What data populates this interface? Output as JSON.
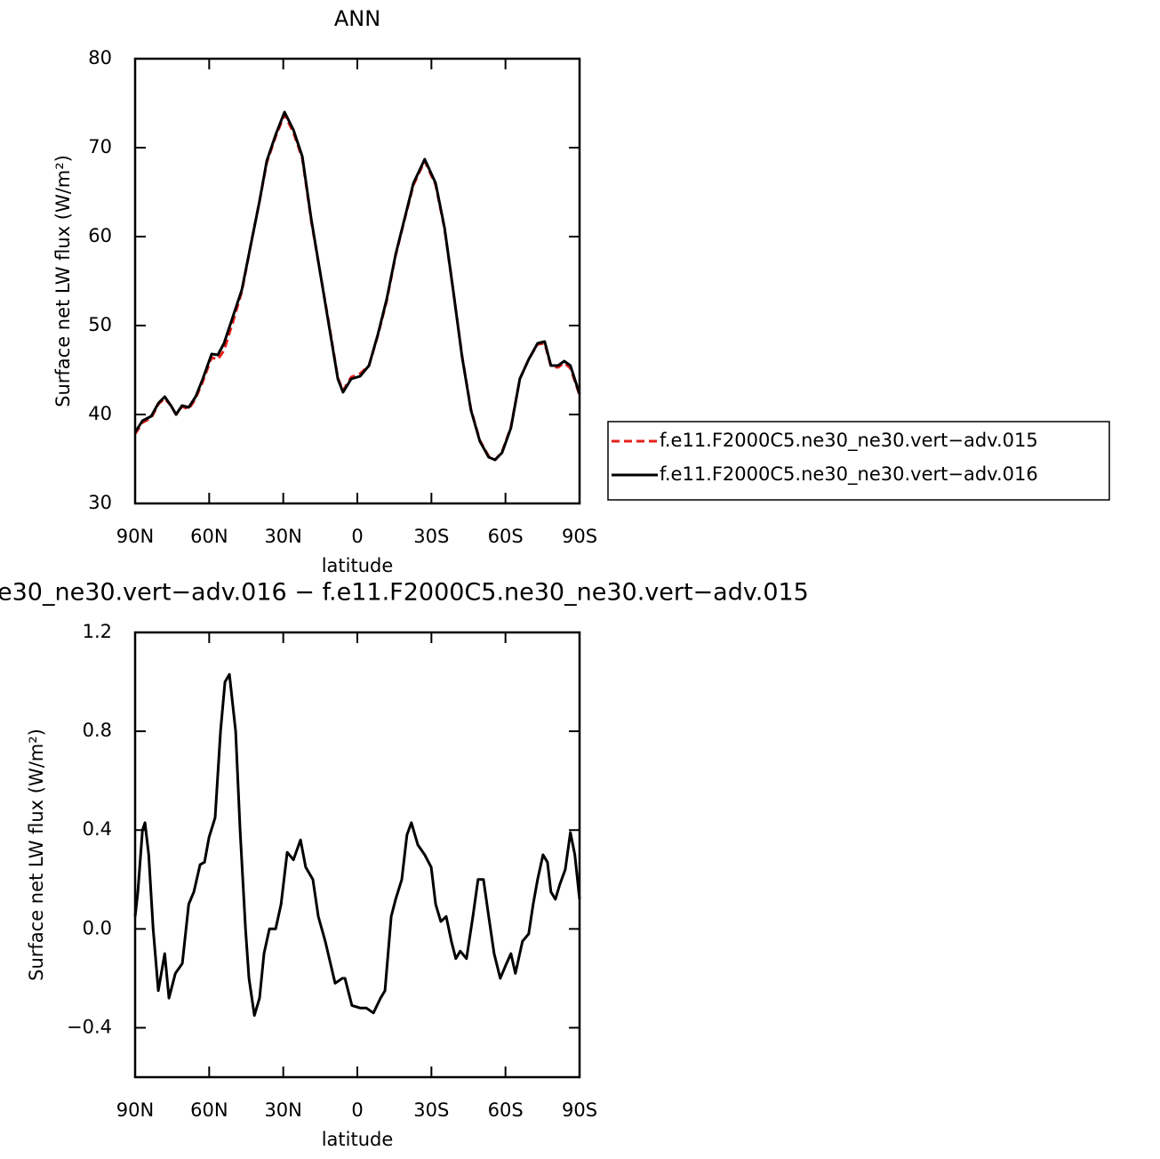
{
  "chart_data": [
    {
      "type": "line",
      "title": "ANN",
      "xlabel": "latitude",
      "ylabel": "Surface net LW flux (W/m²)",
      "xlim": [
        90,
        -90
      ],
      "ylim": [
        30,
        80
      ],
      "xticks": [
        {
          "value": 90,
          "label": "90N"
        },
        {
          "value": 60,
          "label": "60N"
        },
        {
          "value": 30,
          "label": "30N"
        },
        0,
        {
          "value": -30,
          "label": "30S"
        },
        {
          "value": -60,
          "label": "60S"
        },
        {
          "value": -90,
          "label": "90S"
        }
      ],
      "yticks": [
        30,
        40,
        50,
        60,
        70,
        80
      ],
      "legend": "right",
      "x": [
        90,
        87,
        83.5,
        80.5,
        78,
        75.5,
        73.4,
        71,
        68.3,
        65.5,
        62.6,
        59,
        56.5,
        54,
        50.4,
        46.8,
        43.2,
        39.6,
        36.7,
        33,
        29.5,
        25.9,
        22.3,
        18.7,
        15.1,
        11.5,
        7.9,
        5.8,
        2.5,
        -1.1,
        -4.7,
        -8.3,
        -11.9,
        -15.5,
        -19.1,
        -22.7,
        -27.3,
        -31.7,
        -35.3,
        -38.8,
        -42.4,
        -46,
        -49.6,
        -53.2,
        -55.8,
        -58.6,
        -62.2,
        -65.8,
        -69.4,
        -73,
        -75.9,
        -78.4,
        -81.3,
        -83.8,
        -86.3,
        -90
      ],
      "series": [
        {
          "name": "f.e11.F2000C5.ne30_ne30.vert−adv.015",
          "color": "#e8201a",
          "linestyle": "dashed",
          "values": [
            37.8,
            39.1,
            39.6,
            41.2,
            41.8,
            41,
            40,
            40.9,
            40.6,
            41.8,
            43.7,
            46.4,
            46.2,
            47.2,
            50.4,
            53.8,
            59,
            64,
            68.3,
            71.3,
            73.7,
            71.7,
            68.8,
            61.8,
            56,
            50.2,
            44.1,
            42.7,
            44.2,
            44.6,
            45.5,
            48.9,
            52.8,
            57.9,
            61.9,
            65.8,
            68.5,
            65.8,
            60.9,
            54,
            46.6,
            40.6,
            37.1,
            35.3,
            34.9,
            35.8,
            38.6,
            44,
            46.2,
            47.9,
            48,
            45.4,
            45.3,
            45.8,
            45.2,
            42.2
          ]
        },
        {
          "name": "f.e11.F2000C5.ne30_ne30.vert−adv.016",
          "color": "#000000",
          "linestyle": "solid",
          "values": [
            38,
            39.3,
            39.8,
            41.3,
            42,
            41,
            40,
            41,
            40.8,
            42,
            44,
            46.8,
            46.7,
            48,
            51,
            54,
            59,
            64,
            68.5,
            71.5,
            74,
            72,
            69,
            62,
            56,
            50,
            44,
            42.5,
            44,
            44.3,
            45.5,
            49,
            53,
            58,
            62,
            66,
            68.7,
            66,
            61,
            54,
            46.5,
            40.5,
            37,
            35.2,
            34.9,
            35.7,
            38.5,
            44,
            46.2,
            48,
            48.2,
            45.5,
            45.5,
            46,
            45.5,
            42.3
          ]
        }
      ]
    },
    {
      "type": "line",
      "title": "e30_ne30.vert−adv.016 − f.e11.F2000C5.ne30_ne30.vert−adv.015",
      "xlabel": "latitude",
      "ylabel": "Surface net LW flux (W/m²)",
      "xlim": [
        90,
        -90
      ],
      "ylim": [
        -0.6,
        1.2
      ],
      "xticks": [
        {
          "value": 90,
          "label": "90N"
        },
        {
          "value": 60,
          "label": "60N"
        },
        {
          "value": 30,
          "label": "30N"
        },
        0,
        {
          "value": -30,
          "label": "30S"
        },
        {
          "value": -60,
          "label": "60S"
        },
        {
          "value": -90,
          "label": "90S"
        }
      ],
      "yticks": [
        {
          "value": -0.4,
          "label": "−0.4"
        },
        {
          "value": 0,
          "label": "0.0"
        },
        0.4,
        0.8,
        1.2
      ],
      "x": [
        90,
        88.9,
        87,
        86,
        84.5,
        82.7,
        80.6,
        78,
        76.3,
        73.7,
        70.9,
        68.3,
        66.2,
        63.7,
        61.9,
        60.1,
        57.6,
        55.4,
        53.6,
        51.8,
        49.3,
        47.5,
        45.3,
        43.9,
        41.7,
        39.6,
        37.8,
        35.6,
        33.1,
        30.9,
        28.4,
        25.9,
        23,
        20.9,
        18,
        15.8,
        13,
        9,
        6.1,
        5,
        2.2,
        -1.1,
        -3.6,
        -6.5,
        -9.4,
        -11.2,
        -13.7,
        -15.5,
        -18,
        -20.1,
        -21.9,
        -24.5,
        -27.3,
        -29.9,
        -31.7,
        -33.8,
        -36,
        -38.1,
        -39.9,
        -41.7,
        -44.2,
        -46.8,
        -48.9,
        -51.1,
        -53.2,
        -55.4,
        -57.9,
        -60.4,
        -62.2,
        -64,
        -66.9,
        -69.4,
        -71.2,
        -73,
        -75.2,
        -77,
        -78.4,
        -80.2,
        -82,
        -84.2,
        -86.3,
        -88.1,
        -90
      ],
      "series": [
        {
          "color": "#000000",
          "linestyle": "solid",
          "values": [
            0.05,
            0.15,
            0.4,
            0.43,
            0.3,
            0,
            -0.25,
            -0.1,
            -0.28,
            -0.18,
            -0.14,
            0.1,
            0.15,
            0.26,
            0.27,
            0.37,
            0.45,
            0.8,
            1,
            1.03,
            0.8,
            0.4,
            0,
            -0.2,
            -0.35,
            -0.28,
            -0.1,
            0,
            0,
            0.1,
            0.31,
            0.28,
            0.36,
            0.25,
            0.2,
            0.05,
            -0.05,
            -0.22,
            -0.2,
            -0.2,
            -0.31,
            -0.32,
            -0.32,
            -0.34,
            -0.28,
            -0.25,
            0.05,
            0.12,
            0.2,
            0.38,
            0.43,
            0.34,
            0.3,
            0.25,
            0.1,
            0.03,
            0.05,
            -0.05,
            -0.12,
            -0.09,
            -0.12,
            0.05,
            0.2,
            0.2,
            0.05,
            -0.1,
            -0.2,
            -0.14,
            -0.1,
            -0.18,
            -0.05,
            -0.02,
            0.1,
            0.2,
            0.3,
            0.27,
            0.15,
            0.12,
            0.18,
            0.24,
            0.39,
            0.3,
            0.12
          ]
        }
      ]
    }
  ]
}
